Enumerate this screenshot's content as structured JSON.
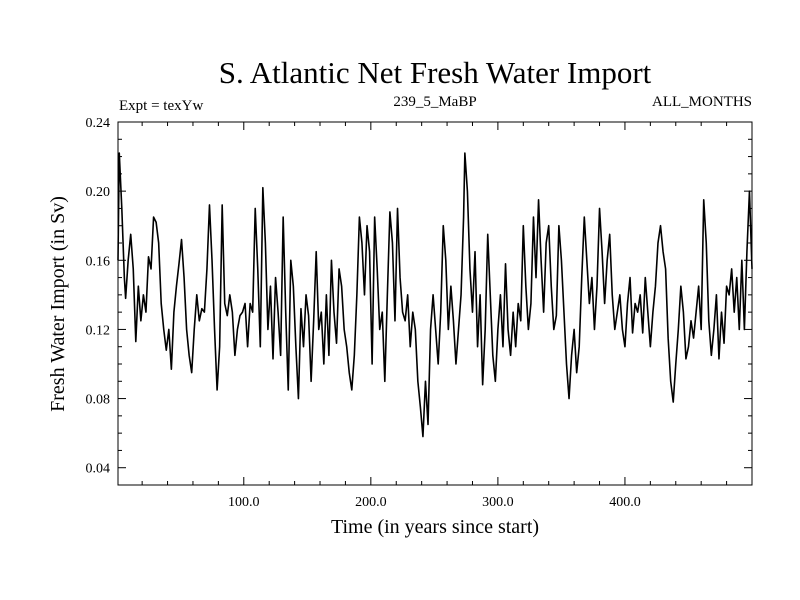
{
  "chart_data": {
    "type": "line",
    "title": "S. Atlantic Net Fresh Water Import",
    "subtitle_left": "Expt = texYw",
    "subtitle_center": "239_5_MaBP",
    "subtitle_right": "ALL_MONTHS",
    "xlabel": "Time (in years since start)",
    "ylabel": "Fresh Water Import (in Sv)",
    "xlim": [
      1,
      500
    ],
    "ylim": [
      0.03,
      0.24
    ],
    "x_ticks": [
      100,
      200,
      300,
      400
    ],
    "x_tick_labels": [
      "100.0",
      "200.0",
      "300.0",
      "400.0"
    ],
    "y_ticks": [
      0.04,
      0.08,
      0.12,
      0.16,
      0.2,
      0.24
    ],
    "y_tick_labels": [
      "0.04",
      "0.08",
      "0.12",
      "0.16",
      "0.20",
      "0.24"
    ],
    "grid": false,
    "line_color": "#000000",
    "series": [
      {
        "points": [
          [
            1,
            0.16
          ],
          [
            2,
            0.222
          ],
          [
            4,
            0.19
          ],
          [
            6,
            0.15
          ],
          [
            7,
            0.138
          ],
          [
            9,
            0.16
          ],
          [
            11,
            0.175
          ],
          [
            13,
            0.155
          ],
          [
            15,
            0.113
          ],
          [
            17,
            0.145
          ],
          [
            19,
            0.125
          ],
          [
            21,
            0.14
          ],
          [
            23,
            0.13
          ],
          [
            25,
            0.162
          ],
          [
            27,
            0.155
          ],
          [
            29,
            0.185
          ],
          [
            31,
            0.182
          ],
          [
            33,
            0.17
          ],
          [
            35,
            0.135
          ],
          [
            37,
            0.12
          ],
          [
            39,
            0.108
          ],
          [
            41,
            0.12
          ],
          [
            43,
            0.097
          ],
          [
            45,
            0.13
          ],
          [
            47,
            0.145
          ],
          [
            49,
            0.158
          ],
          [
            51,
            0.172
          ],
          [
            53,
            0.15
          ],
          [
            55,
            0.12
          ],
          [
            57,
            0.105
          ],
          [
            59,
            0.095
          ],
          [
            61,
            0.12
          ],
          [
            63,
            0.14
          ],
          [
            65,
            0.125
          ],
          [
            67,
            0.132
          ],
          [
            69,
            0.13
          ],
          [
            71,
            0.155
          ],
          [
            73,
            0.192
          ],
          [
            75,
            0.16
          ],
          [
            77,
            0.12
          ],
          [
            79,
            0.085
          ],
          [
            81,
            0.11
          ],
          [
            83,
            0.192
          ],
          [
            85,
            0.135
          ],
          [
            87,
            0.128
          ],
          [
            89,
            0.14
          ],
          [
            91,
            0.13
          ],
          [
            93,
            0.105
          ],
          [
            95,
            0.12
          ],
          [
            97,
            0.128
          ],
          [
            99,
            0.13
          ],
          [
            101,
            0.135
          ],
          [
            103,
            0.11
          ],
          [
            105,
            0.135
          ],
          [
            107,
            0.13
          ],
          [
            109,
            0.19
          ],
          [
            111,
            0.155
          ],
          [
            113,
            0.11
          ],
          [
            115,
            0.202
          ],
          [
            117,
            0.17
          ],
          [
            119,
            0.12
          ],
          [
            121,
            0.145
          ],
          [
            123,
            0.103
          ],
          [
            125,
            0.15
          ],
          [
            127,
            0.13
          ],
          [
            129,
            0.105
          ],
          [
            131,
            0.185
          ],
          [
            133,
            0.13
          ],
          [
            135,
            0.085
          ],
          [
            137,
            0.16
          ],
          [
            139,
            0.145
          ],
          [
            141,
            0.11
          ],
          [
            143,
            0.08
          ],
          [
            145,
            0.132
          ],
          [
            147,
            0.11
          ],
          [
            149,
            0.14
          ],
          [
            151,
            0.128
          ],
          [
            153,
            0.09
          ],
          [
            155,
            0.125
          ],
          [
            157,
            0.165
          ],
          [
            159,
            0.12
          ],
          [
            161,
            0.13
          ],
          [
            163,
            0.1
          ],
          [
            165,
            0.14
          ],
          [
            167,
            0.105
          ],
          [
            169,
            0.16
          ],
          [
            171,
            0.13
          ],
          [
            173,
            0.112
          ],
          [
            175,
            0.155
          ],
          [
            177,
            0.145
          ],
          [
            179,
            0.12
          ],
          [
            181,
            0.11
          ],
          [
            183,
            0.095
          ],
          [
            185,
            0.085
          ],
          [
            187,
            0.105
          ],
          [
            189,
            0.14
          ],
          [
            191,
            0.185
          ],
          [
            193,
            0.17
          ],
          [
            195,
            0.14
          ],
          [
            197,
            0.18
          ],
          [
            199,
            0.165
          ],
          [
            201,
            0.1
          ],
          [
            203,
            0.185
          ],
          [
            205,
            0.155
          ],
          [
            207,
            0.12
          ],
          [
            209,
            0.13
          ],
          [
            211,
            0.09
          ],
          [
            213,
            0.14
          ],
          [
            215,
            0.188
          ],
          [
            217,
            0.17
          ],
          [
            219,
            0.125
          ],
          [
            221,
            0.19
          ],
          [
            223,
            0.15
          ],
          [
            225,
            0.13
          ],
          [
            227,
            0.125
          ],
          [
            229,
            0.14
          ],
          [
            231,
            0.11
          ],
          [
            233,
            0.13
          ],
          [
            235,
            0.12
          ],
          [
            237,
            0.09
          ],
          [
            239,
            0.075
          ],
          [
            241,
            0.058
          ],
          [
            243,
            0.09
          ],
          [
            245,
            0.065
          ],
          [
            247,
            0.12
          ],
          [
            249,
            0.14
          ],
          [
            251,
            0.12
          ],
          [
            253,
            0.1
          ],
          [
            255,
            0.13
          ],
          [
            257,
            0.18
          ],
          [
            259,
            0.16
          ],
          [
            261,
            0.12
          ],
          [
            263,
            0.145
          ],
          [
            265,
            0.125
          ],
          [
            267,
            0.1
          ],
          [
            269,
            0.12
          ],
          [
            271,
            0.14
          ],
          [
            273,
            0.185
          ],
          [
            274,
            0.222
          ],
          [
            276,
            0.2
          ],
          [
            278,
            0.155
          ],
          [
            280,
            0.13
          ],
          [
            282,
            0.165
          ],
          [
            284,
            0.11
          ],
          [
            286,
            0.14
          ],
          [
            288,
            0.088
          ],
          [
            290,
            0.12
          ],
          [
            292,
            0.175
          ],
          [
            294,
            0.14
          ],
          [
            296,
            0.105
          ],
          [
            298,
            0.09
          ],
          [
            300,
            0.12
          ],
          [
            302,
            0.14
          ],
          [
            304,
            0.11
          ],
          [
            306,
            0.158
          ],
          [
            308,
            0.12
          ],
          [
            310,
            0.105
          ],
          [
            312,
            0.13
          ],
          [
            314,
            0.11
          ],
          [
            316,
            0.135
          ],
          [
            318,
            0.125
          ],
          [
            320,
            0.18
          ],
          [
            322,
            0.145
          ],
          [
            324,
            0.12
          ],
          [
            326,
            0.135
          ],
          [
            328,
            0.185
          ],
          [
            330,
            0.15
          ],
          [
            332,
            0.195
          ],
          [
            334,
            0.16
          ],
          [
            336,
            0.13
          ],
          [
            338,
            0.17
          ],
          [
            340,
            0.18
          ],
          [
            342,
            0.145
          ],
          [
            344,
            0.12
          ],
          [
            346,
            0.128
          ],
          [
            348,
            0.18
          ],
          [
            350,
            0.16
          ],
          [
            352,
            0.13
          ],
          [
            354,
            0.1
          ],
          [
            356,
            0.08
          ],
          [
            358,
            0.105
          ],
          [
            360,
            0.12
          ],
          [
            362,
            0.095
          ],
          [
            364,
            0.11
          ],
          [
            366,
            0.15
          ],
          [
            368,
            0.185
          ],
          [
            370,
            0.16
          ],
          [
            372,
            0.135
          ],
          [
            374,
            0.15
          ],
          [
            376,
            0.12
          ],
          [
            378,
            0.145
          ],
          [
            380,
            0.19
          ],
          [
            382,
            0.165
          ],
          [
            384,
            0.135
          ],
          [
            386,
            0.16
          ],
          [
            388,
            0.175
          ],
          [
            390,
            0.14
          ],
          [
            392,
            0.12
          ],
          [
            394,
            0.13
          ],
          [
            396,
            0.14
          ],
          [
            398,
            0.12
          ],
          [
            400,
            0.11
          ],
          [
            402,
            0.135
          ],
          [
            404,
            0.15
          ],
          [
            406,
            0.118
          ],
          [
            408,
            0.135
          ],
          [
            410,
            0.13
          ],
          [
            412,
            0.14
          ],
          [
            414,
            0.118
          ],
          [
            416,
            0.15
          ],
          [
            418,
            0.13
          ],
          [
            420,
            0.11
          ],
          [
            422,
            0.13
          ],
          [
            424,
            0.145
          ],
          [
            426,
            0.17
          ],
          [
            428,
            0.18
          ],
          [
            430,
            0.165
          ],
          [
            432,
            0.155
          ],
          [
            434,
            0.115
          ],
          [
            436,
            0.09
          ],
          [
            438,
            0.078
          ],
          [
            440,
            0.1
          ],
          [
            442,
            0.12
          ],
          [
            444,
            0.145
          ],
          [
            446,
            0.13
          ],
          [
            448,
            0.103
          ],
          [
            450,
            0.11
          ],
          [
            452,
            0.125
          ],
          [
            454,
            0.115
          ],
          [
            456,
            0.13
          ],
          [
            458,
            0.145
          ],
          [
            460,
            0.12
          ],
          [
            462,
            0.195
          ],
          [
            464,
            0.17
          ],
          [
            466,
            0.125
          ],
          [
            468,
            0.105
          ],
          [
            470,
            0.12
          ],
          [
            472,
            0.14
          ],
          [
            474,
            0.103
          ],
          [
            476,
            0.13
          ],
          [
            478,
            0.112
          ],
          [
            480,
            0.145
          ],
          [
            482,
            0.14
          ],
          [
            484,
            0.155
          ],
          [
            486,
            0.13
          ],
          [
            488,
            0.15
          ],
          [
            490,
            0.12
          ],
          [
            492,
            0.16
          ],
          [
            494,
            0.12
          ],
          [
            496,
            0.165
          ],
          [
            498,
            0.2
          ],
          [
            500,
            0.155
          ]
        ]
      }
    ]
  }
}
